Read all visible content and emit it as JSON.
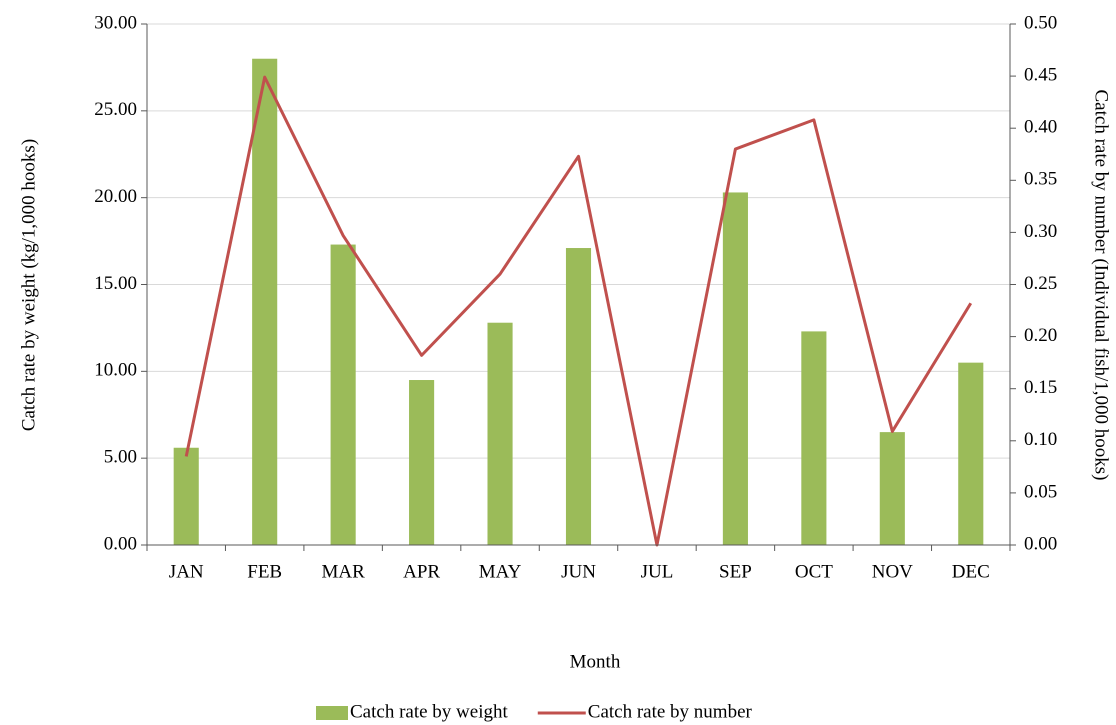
{
  "chart_data": {
    "type": "bar-line",
    "x_label": "Month",
    "y_label": "Catch rate by weight (kg/1,000 hooks)",
    "y2_label": "Catch rate by number (Individual fish/1,000 hooks)",
    "categories": [
      "JAN",
      "FEB",
      "MAR",
      "APR",
      "MAY",
      "JUN",
      "JUL",
      "SEP",
      "OCT",
      "NOV",
      "DEC"
    ],
    "series": [
      {
        "name": "Catch rate by weight",
        "type": "bar",
        "color": "#9bbb59",
        "axis": "y",
        "values": [
          5.6,
          28.0,
          17.3,
          9.5,
          12.8,
          17.1,
          0,
          20.3,
          12.3,
          6.5,
          10.5
        ]
      },
      {
        "name": "Catch rate by number",
        "type": "line",
        "color": "#c0504d",
        "axis": "y2",
        "values": [
          0.085,
          0.449,
          0.297,
          0.182,
          0.26,
          0.373,
          0.0,
          0.38,
          0.408,
          0.109,
          0.232
        ]
      }
    ],
    "ylim": [
      0,
      30
    ],
    "yticks": [
      {
        "value": 0,
        "label": "0.00"
      },
      {
        "value": 5,
        "label": "5.00"
      },
      {
        "value": 10,
        "label": "10.00"
      },
      {
        "value": 15,
        "label": "15.00"
      },
      {
        "value": 20,
        "label": "20.00"
      },
      {
        "value": 25,
        "label": "25.00"
      },
      {
        "value": 30,
        "label": "30.00"
      }
    ],
    "y2lim": [
      0,
      0.5
    ],
    "y2ticks": [
      {
        "value": 0,
        "label": "0.00"
      },
      {
        "value": 0.05,
        "label": "0.05"
      },
      {
        "value": 0.1,
        "label": "0.10"
      },
      {
        "value": 0.15,
        "label": "0.15"
      },
      {
        "value": 0.2,
        "label": "0.20"
      },
      {
        "value": 0.25,
        "label": "0.25"
      },
      {
        "value": 0.3,
        "label": "0.30"
      },
      {
        "value": 0.35,
        "label": "0.35"
      },
      {
        "value": 0.4,
        "label": "0.40"
      },
      {
        "value": 0.45,
        "label": "0.45"
      },
      {
        "value": 0.5,
        "label": "0.50"
      }
    ],
    "grid": true,
    "legend": "bottom"
  }
}
